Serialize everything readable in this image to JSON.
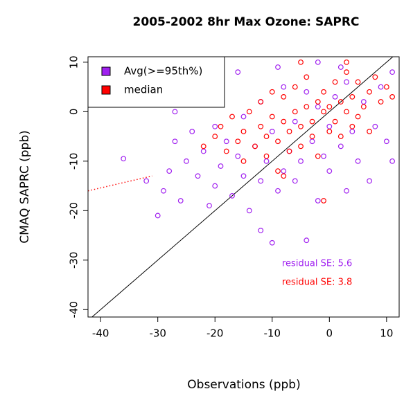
{
  "chart_data": {
    "type": "scatter",
    "title": "2005-2002 8hr Max Ozone: SAPRC",
    "xlabel": "Observations (ppb)",
    "ylabel": "CMAQ SAPRC (ppb)",
    "xlim": [
      -42.2,
      12.2
    ],
    "ylim": [
      -41.5,
      11.1
    ],
    "xticks": [
      -40,
      -30,
      -20,
      -10,
      0,
      10
    ],
    "yticks": [
      -40,
      -30,
      -20,
      -10,
      0,
      10
    ],
    "legend": "top-left",
    "series": [
      {
        "name": "Avg(>=95th%)",
        "color": "#a020f0",
        "x": [
          -36,
          -32,
          -30,
          -29,
          -28,
          -27,
          -26,
          -25,
          -24,
          -23,
          -22,
          -21,
          -20,
          -20,
          -19,
          -18,
          -17,
          -16,
          -15,
          -15,
          -14,
          -13,
          -12,
          -12,
          -11,
          -10,
          -10,
          -9,
          -8,
          -8,
          -7,
          -6,
          -6,
          -5,
          -4,
          -4,
          -3,
          -2,
          -2,
          -1,
          0,
          0,
          1,
          2,
          3,
          3,
          4,
          5,
          6,
          7,
          8,
          9,
          10,
          11,
          11,
          -16,
          -9,
          -20,
          -27,
          -12,
          -2,
          2
        ],
        "values": [
          -9.5,
          -14,
          -21,
          -16,
          -12,
          -6,
          -18,
          -10,
          -4,
          -13,
          -8,
          -19,
          -15,
          -3,
          -11,
          -6,
          -17,
          -9,
          -13,
          -1,
          -20,
          -7,
          -14,
          2,
          -10,
          -4,
          -26.5,
          -16,
          -12,
          5,
          -8,
          -2,
          -14,
          -10,
          -26,
          4,
          -6,
          -18,
          1,
          -9,
          -3,
          -12,
          3,
          -7,
          -16,
          6,
          -4,
          -10,
          2,
          -14,
          -3,
          5,
          -6,
          -10,
          8,
          8,
          9,
          4,
          0,
          -24,
          10,
          9
        ]
      },
      {
        "name": "median",
        "color": "#ff0000",
        "x": [
          -22,
          -20,
          -19,
          -18,
          -17,
          -16,
          -15,
          -15,
          -14,
          -13,
          -12,
          -12,
          -11,
          -11,
          -10,
          -10,
          -9,
          -9,
          -8,
          -8,
          -7,
          -7,
          -6,
          -6,
          -5,
          -5,
          -4,
          -4,
          -3,
          -3,
          -2,
          -2,
          -1,
          -1,
          0,
          0,
          1,
          1,
          2,
          2,
          3,
          3,
          4,
          4,
          5,
          5,
          6,
          7,
          7,
          8,
          9,
          10,
          11,
          -1,
          -8,
          3,
          -5
        ],
        "values": [
          -7,
          -5,
          -3,
          -8,
          -1,
          -6,
          -10,
          -4,
          0,
          -7,
          -3,
          2,
          -9,
          -5,
          -1,
          4,
          -6,
          -12,
          -2,
          3,
          -4,
          -8,
          0,
          5,
          -3,
          -7,
          1,
          7,
          -2,
          -5,
          2,
          -9,
          0,
          4,
          -4,
          1,
          6,
          -2,
          2,
          -5,
          0,
          8,
          3,
          -3,
          6,
          -1,
          1,
          4,
          -4,
          7,
          2,
          5,
          3,
          -18,
          -13,
          10,
          10
        ]
      }
    ],
    "fit_line": {
      "color": "#ff0000",
      "x": [
        -42.2,
        -31
      ],
      "y": [
        -16,
        -13
      ]
    },
    "annotations": [
      {
        "text": "residual SE:  5.6",
        "color": "#a020f0"
      },
      {
        "text": "residual SE:  3.8",
        "color": "#ff0000"
      }
    ]
  }
}
